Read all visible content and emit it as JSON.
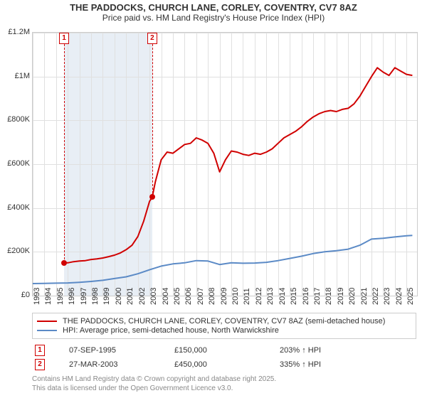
{
  "title": {
    "main": "THE PADDOCKS, CHURCH LANE, CORLEY, COVENTRY, CV7 8AZ",
    "sub": "Price paid vs. HM Land Registry's House Price Index (HPI)",
    "fontsize_main": 13,
    "fontsize_sub": 12,
    "color": "#333333"
  },
  "chart": {
    "type": "line",
    "background_color": "#ffffff",
    "plot_border_color": "#cccccc",
    "grid_color": "#e0e0e0",
    "x": {
      "min": 1993,
      "max": 2025.9,
      "tick_start": 1993,
      "tick_end": 2025,
      "tick_step": 1,
      "label_fontsize": 11,
      "label_rotation": -90
    },
    "y": {
      "min": 0,
      "max": 1200000,
      "tick_step": 200000,
      "labels": [
        "£0",
        "£200K",
        "£400K",
        "£600K",
        "£800K",
        "£1M",
        "£1.2M"
      ],
      "label_fontsize": 11
    },
    "shade": {
      "color": "#e8eef5",
      "from_year": 1995.68,
      "to_year": 2003.23
    },
    "series": [
      {
        "name": "price_paid",
        "legend": "THE PADDOCKS, CHURCH LANE, CORLEY, COVENTRY, CV7 8AZ (semi-detached house)",
        "color": "#d00000",
        "line_width": 2,
        "points": [
          [
            1995.68,
            150000
          ],
          [
            1996.0,
            150000
          ],
          [
            1996.5,
            155000
          ],
          [
            1997.0,
            158000
          ],
          [
            1997.5,
            160000
          ],
          [
            1998.0,
            165000
          ],
          [
            1998.5,
            168000
          ],
          [
            1999.0,
            172000
          ],
          [
            1999.5,
            178000
          ],
          [
            2000.0,
            185000
          ],
          [
            2000.5,
            195000
          ],
          [
            2001.0,
            210000
          ],
          [
            2001.5,
            230000
          ],
          [
            2002.0,
            270000
          ],
          [
            2002.5,
            340000
          ],
          [
            2003.0,
            430000
          ],
          [
            2003.23,
            450000
          ],
          [
            2003.5,
            520000
          ],
          [
            2004.0,
            620000
          ],
          [
            2004.5,
            655000
          ],
          [
            2005.0,
            650000
          ],
          [
            2005.5,
            670000
          ],
          [
            2006.0,
            690000
          ],
          [
            2006.5,
            695000
          ],
          [
            2007.0,
            720000
          ],
          [
            2007.5,
            710000
          ],
          [
            2008.0,
            695000
          ],
          [
            2008.5,
            650000
          ],
          [
            2009.0,
            565000
          ],
          [
            2009.5,
            620000
          ],
          [
            2010.0,
            660000
          ],
          [
            2010.5,
            655000
          ],
          [
            2011.0,
            645000
          ],
          [
            2011.5,
            640000
          ],
          [
            2012.0,
            650000
          ],
          [
            2012.5,
            645000
          ],
          [
            2013.0,
            655000
          ],
          [
            2013.5,
            670000
          ],
          [
            2014.0,
            695000
          ],
          [
            2014.5,
            720000
          ],
          [
            2015.0,
            735000
          ],
          [
            2015.5,
            750000
          ],
          [
            2016.0,
            770000
          ],
          [
            2016.5,
            795000
          ],
          [
            2017.0,
            815000
          ],
          [
            2017.5,
            830000
          ],
          [
            2018.0,
            840000
          ],
          [
            2018.5,
            845000
          ],
          [
            2019.0,
            840000
          ],
          [
            2019.5,
            850000
          ],
          [
            2020.0,
            855000
          ],
          [
            2020.5,
            875000
          ],
          [
            2021.0,
            910000
          ],
          [
            2021.5,
            955000
          ],
          [
            2022.0,
            1000000
          ],
          [
            2022.5,
            1040000
          ],
          [
            2023.0,
            1020000
          ],
          [
            2023.5,
            1005000
          ],
          [
            2024.0,
            1040000
          ],
          [
            2024.5,
            1025000
          ],
          [
            2025.0,
            1010000
          ],
          [
            2025.5,
            1005000
          ]
        ]
      },
      {
        "name": "hpi",
        "legend": "HPI: Average price, semi-detached house, North Warwickshire",
        "color": "#5b8ac6",
        "line_width": 2,
        "points": [
          [
            1993.0,
            55000
          ],
          [
            1994.0,
            56000
          ],
          [
            1995.0,
            57000
          ],
          [
            1996.0,
            58000
          ],
          [
            1997.0,
            61000
          ],
          [
            1998.0,
            65000
          ],
          [
            1999.0,
            70000
          ],
          [
            2000.0,
            78000
          ],
          [
            2001.0,
            86000
          ],
          [
            2002.0,
            100000
          ],
          [
            2003.0,
            118000
          ],
          [
            2004.0,
            135000
          ],
          [
            2005.0,
            145000
          ],
          [
            2006.0,
            150000
          ],
          [
            2007.0,
            160000
          ],
          [
            2008.0,
            158000
          ],
          [
            2009.0,
            142000
          ],
          [
            2010.0,
            150000
          ],
          [
            2011.0,
            148000
          ],
          [
            2012.0,
            149000
          ],
          [
            2013.0,
            152000
          ],
          [
            2014.0,
            160000
          ],
          [
            2015.0,
            170000
          ],
          [
            2016.0,
            180000
          ],
          [
            2017.0,
            192000
          ],
          [
            2018.0,
            200000
          ],
          [
            2019.0,
            205000
          ],
          [
            2020.0,
            212000
          ],
          [
            2021.0,
            230000
          ],
          [
            2022.0,
            258000
          ],
          [
            2023.0,
            262000
          ],
          [
            2024.0,
            268000
          ],
          [
            2025.0,
            273000
          ],
          [
            2025.5,
            275000
          ]
        ]
      }
    ],
    "markers": [
      {
        "n": "1",
        "year": 1995.68,
        "price": 150000
      },
      {
        "n": "2",
        "year": 2003.23,
        "price": 450000
      }
    ]
  },
  "legend": {
    "fontsize": 11,
    "border_color": "#cccccc"
  },
  "sales": [
    {
      "n": "1",
      "date": "07-SEP-1995",
      "price": "£150,000",
      "vs_hpi": "203% ↑ HPI"
    },
    {
      "n": "2",
      "date": "27-MAR-2003",
      "price": "£450,000",
      "vs_hpi": "335% ↑ HPI"
    }
  ],
  "attribution": {
    "line1": "Contains HM Land Registry data © Crown copyright and database right 2025.",
    "line2": "This data is licensed under the Open Government Licence v3.0.",
    "fontsize": 10,
    "color": "#888888"
  }
}
